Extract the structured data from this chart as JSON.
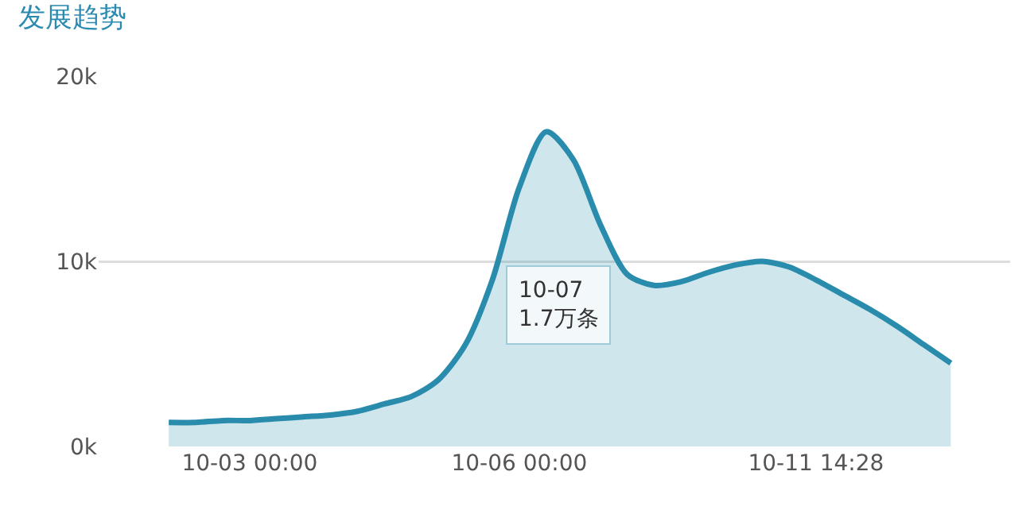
{
  "chart_data": {
    "type": "area",
    "title": "发展趋势",
    "categories": [
      null,
      null,
      null,
      "10-03 00:00",
      null,
      null,
      null,
      null,
      null,
      null,
      null,
      null,
      null,
      "10-06 00:00",
      null,
      null,
      null,
      null,
      null,
      null,
      null,
      null,
      null,
      null,
      "10-11 14:28",
      null,
      null,
      null,
      null,
      null
    ],
    "series": [
      {
        "color": "#2a8cad",
        "values": [
          1300,
          1300,
          1400,
          1400,
          1500,
          1600,
          1700,
          1900,
          2300,
          2700,
          3600,
          5500,
          9000,
          14000,
          17000,
          15500,
          12000,
          9300,
          8700,
          8900,
          9400,
          9800,
          10000,
          9700,
          9000,
          8200,
          7400,
          6500,
          5500,
          4500
        ]
      }
    ],
    "ylim": [
      0,
      20000
    ],
    "yticks": [
      {
        "value": 0,
        "label": "0k"
      },
      {
        "value": 10000,
        "label": "10k"
      },
      {
        "value": 20000,
        "label": "20k"
      }
    ],
    "grid": "y",
    "legend": false,
    "marker": "none",
    "annotations": [
      "10-07\n1.7万条"
    ]
  }
}
